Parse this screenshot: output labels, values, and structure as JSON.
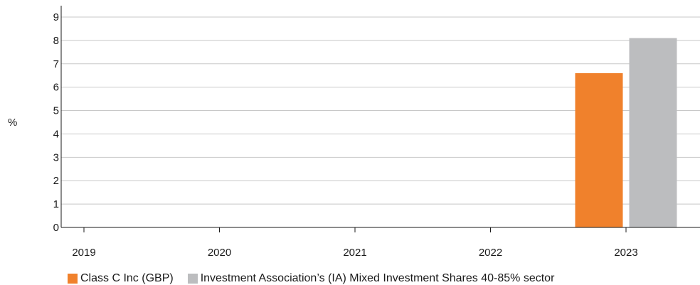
{
  "chart_data": {
    "type": "bar",
    "categories": [
      "2019",
      "2020",
      "2021",
      "2022",
      "2023"
    ],
    "series": [
      {
        "name": "Class C Inc (GBP)",
        "color": "#f0812c",
        "values": [
          null,
          null,
          null,
          null,
          6.6
        ]
      },
      {
        "name": "Investment Association’s (IA) Mixed Investment Shares 40-85% sector",
        "color": "#bcbdbf",
        "values": [
          null,
          null,
          null,
          null,
          8.1
        ]
      }
    ],
    "ylabel": "%",
    "ylim": [
      0,
      9
    ],
    "yticks": [
      "0",
      "1",
      "2",
      "3",
      "4",
      "5",
      "6",
      "7",
      "8",
      "9"
    ],
    "grid": true,
    "legend_position": "bottom-left"
  }
}
